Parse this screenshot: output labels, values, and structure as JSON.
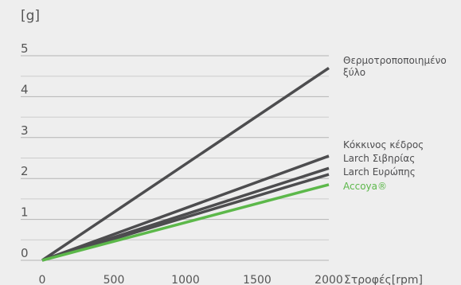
{
  "chart_data": {
    "type": "line",
    "ylabel": "[g]",
    "xlabel": "Στροφές[rpm]",
    "xlim": [
      0,
      2000
    ],
    "ylim": [
      0,
      5
    ],
    "x_ticks": [
      "0",
      "500",
      "1000",
      "1500",
      "2000"
    ],
    "y_ticks": [
      "0",
      "1",
      "2",
      "3",
      "4",
      "5"
    ],
    "grid": "horizontal",
    "legend": "right",
    "series": [
      {
        "name": "Θερμοτροποποιημένο ξύλο",
        "label_lines": [
          "Θερμοτροποποιημένο",
          "ξύλο"
        ],
        "color": "#4d4d4f",
        "x": [
          0,
          2000
        ],
        "y": [
          0,
          4.7
        ]
      },
      {
        "name": "Κόκκινος κέδρος",
        "label_lines": [
          "Κόκκινος κέδρος"
        ],
        "color": "#4d4d4f",
        "x": [
          0,
          2000
        ],
        "y": [
          0,
          2.55
        ]
      },
      {
        "name": "Larch Σιβηρίας",
        "label_lines": [
          "Larch Σιβηρίας"
        ],
        "color": "#4d4d4f",
        "x": [
          0,
          2000
        ],
        "y": [
          0,
          2.25
        ]
      },
      {
        "name": "Larch Ευρώπης",
        "label_lines": [
          "Larch Ευρώπης"
        ],
        "color": "#4d4d4f",
        "x": [
          0,
          2000
        ],
        "y": [
          0,
          2.1
        ]
      },
      {
        "name": "Accoya®",
        "label_lines": [
          "Accoya®"
        ],
        "color": "#5cb84a",
        "x": [
          0,
          2000
        ],
        "y": [
          0,
          1.85
        ]
      }
    ]
  }
}
